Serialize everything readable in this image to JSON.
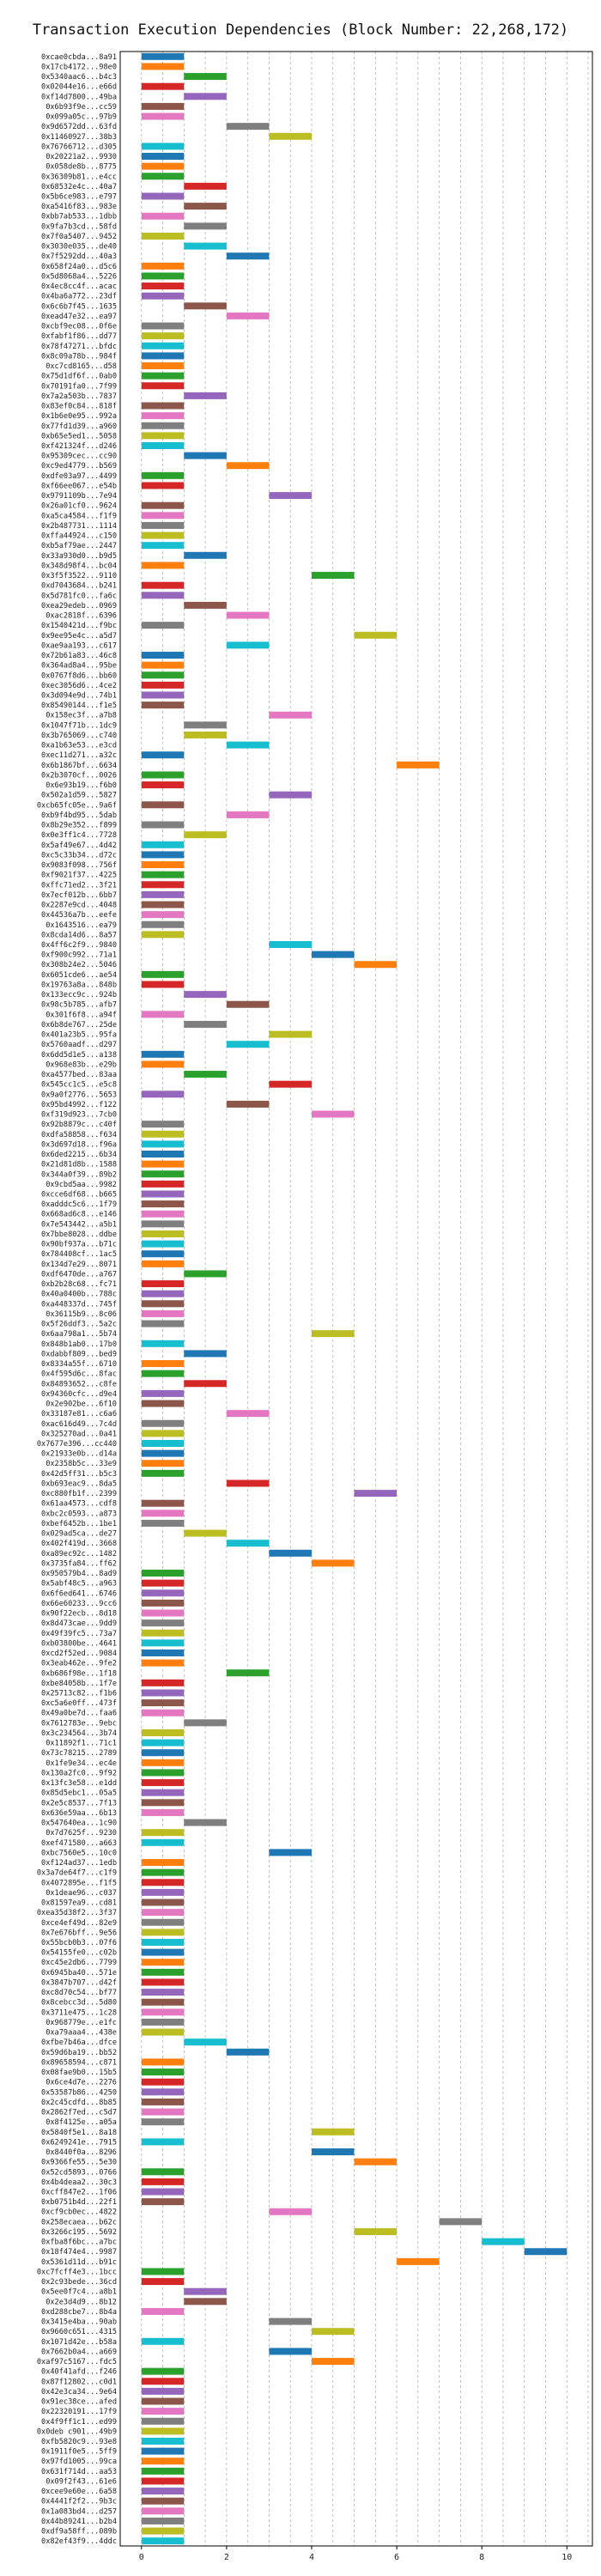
{
  "chart_data": {
    "type": "bar",
    "orientation": "horizontal-gantt",
    "title": "Transaction Execution Dependencies (Block Number: 22,268,172)",
    "xlabel": "",
    "ylabel": "",
    "xlim": [
      -0.5,
      10.6
    ],
    "xticks": [
      0,
      2,
      4,
      6,
      8,
      10
    ],
    "grid": true,
    "palette": [
      "#1f77b4",
      "#ff7f0e",
      "#2ca02c",
      "#d62728",
      "#9467bd",
      "#8c564b",
      "#e377c2",
      "#7f7f7f",
      "#bcbd22",
      "#17becf"
    ],
    "tasks": [
      [
        "0xcae0cbda...8a91",
        0,
        0
      ],
      [
        "0x17cb4172...98e0",
        0,
        1
      ],
      [
        "0x5340aac6...b4c3",
        1,
        2
      ],
      [
        "0x02044e16...e66d",
        0,
        3
      ],
      [
        "0xf14d7800...49ba",
        1,
        4
      ],
      [
        "0x6b93f9e...cc59",
        0,
        5
      ],
      [
        "0x099a05c...97b9",
        0,
        6
      ],
      [
        "0x9d6572dd...63fd",
        2,
        7
      ],
      [
        "0x11460927...38b3",
        3,
        8
      ],
      [
        "0x76766712...d305",
        0,
        9
      ],
      [
        "0x20221a2...9930",
        0,
        10
      ],
      [
        "0x058de8b...8775",
        0,
        11
      ],
      [
        "0x36309b81...e4cc",
        0,
        12
      ],
      [
        "0x68532e4c...40a7",
        1,
        13
      ],
      [
        "0x5b6ce983...e797",
        0,
        14
      ],
      [
        "0xa5416f83...983e",
        1,
        15
      ],
      [
        "0xbb7ab533...1dbb",
        0,
        16
      ],
      [
        "0x9fa7b3cd...58fd",
        1,
        17
      ],
      [
        "0x7f0a5407...9452",
        0,
        18
      ],
      [
        "0x3030e035...de40",
        1,
        19
      ],
      [
        "0x7f5292dd...40a3",
        2,
        20
      ],
      [
        "0x658f24a0...d5c6",
        0,
        21
      ],
      [
        "0x5d8068a4...5226",
        0,
        22
      ],
      [
        "0x4ec8cc4f...acac",
        0,
        23
      ],
      [
        "0x4ba6a772...23df",
        0,
        24
      ],
      [
        "0x6c6b7f45...1635",
        1,
        25
      ],
      [
        "0xead47e32...ea97",
        2,
        26
      ],
      [
        "0xcbf9ec08...0f6e",
        0,
        27
      ],
      [
        "0xfabf1f86...dd77",
        0,
        28
      ],
      [
        "0x78f47271...bfdc",
        0,
        29
      ],
      [
        "0x8c09a78b...984f",
        0,
        30
      ],
      [
        "0xc7cd8165...d58",
        0,
        31
      ],
      [
        "0x75d1df6f...0ab0",
        0,
        32
      ],
      [
        "0x70191fa0...7f99",
        0,
        33
      ],
      [
        "0x7a2a503b...7837",
        1,
        34
      ],
      [
        "0x83ef0c84...818f",
        0,
        35
      ],
      [
        "0x1b6e0e95...992a",
        0,
        36
      ],
      [
        "0x77fd1d39...a960",
        0,
        37
      ],
      [
        "0xb65e5ed1...5058",
        0,
        38
      ],
      [
        "0xf421324f...d246",
        0,
        39
      ],
      [
        "0x95309cec...cc90",
        1,
        40
      ],
      [
        "0xc9ed4779...b569",
        2,
        41
      ],
      [
        "0xdfe03a97...4499",
        0,
        42
      ],
      [
        "0xf66ee067...e54b",
        0,
        43
      ],
      [
        "0x9791109b...7e94",
        3,
        44
      ],
      [
        "0x26a01cf0...9624",
        0,
        45
      ],
      [
        "0xa5ca4584...f1f9",
        0,
        46
      ],
      [
        "0x2b487731...1114",
        0,
        47
      ],
      [
        "0xffa44924...c150",
        0,
        48
      ],
      [
        "0xb5af79ae...2447",
        0,
        49
      ],
      [
        "0x33a930d0...b9d5",
        1,
        50
      ],
      [
        "0x348d98f4...bc04",
        0,
        51
      ],
      [
        "0x3f5f3522...9110",
        4,
        52
      ],
      [
        "0xd7043684...b241",
        0,
        53
      ],
      [
        "0x5d781fc0...fa6c",
        0,
        54
      ],
      [
        "0xea29edeb...0969",
        1,
        55
      ],
      [
        "0xac2818f...6396",
        2,
        56
      ],
      [
        "0x1540421d...f9bc",
        0,
        57
      ],
      [
        "0x9ee95e4c...a5d7",
        5,
        58
      ],
      [
        "0xae9aa193...c617",
        2,
        59
      ],
      [
        "0x72b61a83...46c8",
        0,
        60
      ],
      [
        "0x364ad8a4...95be",
        0,
        61
      ],
      [
        "0x0767f8d6...bb60",
        0,
        62
      ],
      [
        "0xec3056d6...4ce2",
        0,
        63
      ],
      [
        "0x3d094e9d...74b1",
        0,
        64
      ],
      [
        "0x85490144...f1e5",
        0,
        65
      ],
      [
        "0x158ec3f...a7b8",
        3,
        66
      ],
      [
        "0x1047f71b...1dc9",
        1,
        67
      ],
      [
        "0x3b765069...c740",
        1,
        68
      ],
      [
        "0xa1b63e53...e3cd",
        2,
        69
      ],
      [
        "0xec11d271...a32c",
        0,
        70
      ],
      [
        "0x6b1867bf...6634",
        6,
        71
      ],
      [
        "0x2b3070cf...0026",
        0,
        72
      ],
      [
        "0x6e93b19...f6b0",
        0,
        73
      ],
      [
        "0x502a1d59...5827",
        3,
        74
      ],
      [
        "0xcb65fc05e...9a6f",
        0,
        75
      ],
      [
        "0xb9f4bd95...5dab",
        2,
        76
      ],
      [
        "0x8b29e352...f899",
        0,
        77
      ],
      [
        "0x0e3ff1c4...7728",
        1,
        78
      ],
      [
        "0x5af49e67...4d42",
        0,
        79
      ],
      [
        "0xc5c33b34...d72c",
        0,
        80
      ],
      [
        "0x9083f098...756f",
        0,
        81
      ],
      [
        "0xf9021f37...4225",
        0,
        82
      ],
      [
        "0xffc71ed2...3f21",
        0,
        83
      ],
      [
        "0x7ecf012b...6bb7",
        0,
        84
      ],
      [
        "0x2287e9cd...4048",
        0,
        85
      ],
      [
        "0x44536a7b...eefe",
        0,
        86
      ],
      [
        "0x1643516...ea79",
        0,
        87
      ],
      [
        "0x8cda14d6...8a57",
        0,
        88
      ],
      [
        "0x4ff6c2f9...9840",
        3,
        89
      ],
      [
        "0xf900c992...71a1",
        4,
        90
      ],
      [
        "0x308b24e2...5046",
        5,
        91
      ],
      [
        "0x6051cde6...ae54",
        0,
        92
      ],
      [
        "0x19763a8a...848b",
        0,
        93
      ],
      [
        "0x133ecc9c...924b",
        1,
        94
      ],
      [
        "0x98c5b785...afb7",
        2,
        95
      ],
      [
        "0x301f6f8...a94f",
        0,
        96
      ],
      [
        "0x6b8de767...25de",
        1,
        97
      ],
      [
        "0x401a23b5...95fa",
        3,
        98
      ],
      [
        "0x5760aadf...d297",
        2,
        99
      ],
      [
        "0x6dd5d1e5...a138",
        0,
        100
      ],
      [
        "0x968e83b...e29b",
        0,
        101
      ],
      [
        "0xa4577bed...83aa",
        1,
        102
      ],
      [
        "0x545cc1c5...e5c8",
        3,
        103
      ],
      [
        "0x9a0f2776...5653",
        0,
        104
      ],
      [
        "0x95bd4992...f122",
        2,
        105
      ],
      [
        "0xf319d923...7cb0",
        4,
        106
      ],
      [
        "0x92b8879c...c40f",
        0,
        107
      ],
      [
        "0xdfa58858...f634",
        0,
        108
      ],
      [
        "0x3d697d18...f96a",
        0,
        109
      ],
      [
        "0x6ded2215...6b34",
        0,
        110
      ],
      [
        "0x21d81d8b...1588",
        0,
        111
      ],
      [
        "0x344a0f39...89b2",
        0,
        112
      ],
      [
        "0x9cbd5aa...9982",
        0,
        113
      ],
      [
        "0xcce6df68...b665",
        0,
        114
      ],
      [
        "0xadddc5c6...1f79",
        0,
        115
      ],
      [
        "0x668ad6c8...e146",
        0,
        116
      ],
      [
        "0x7e543442...a5b1",
        0,
        117
      ],
      [
        "0x7bbe8028...ddbe",
        0,
        118
      ],
      [
        "0x90bf937a...b71c",
        0,
        119
      ],
      [
        "0x784408cf...1ac5",
        0,
        120
      ],
      [
        "0x134d7e29...8071",
        0,
        121
      ],
      [
        "0xdf6470de...a767",
        1,
        122
      ],
      [
        "0xb2b28c68...fc71",
        0,
        123
      ],
      [
        "0x40a0400b...788c",
        0,
        124
      ],
      [
        "0xa448337d...745f",
        0,
        125
      ],
      [
        "0x36115b9...8c06",
        0,
        126
      ],
      [
        "0x5f26ddf3...5a2c",
        0,
        127
      ],
      [
        "0x6aa798a1...5b74",
        4,
        128
      ],
      [
        "0x848b1ab0...17b0",
        0,
        129
      ],
      [
        "0xdabbf809...bed9",
        1,
        130
      ],
      [
        "0x8334a55f...6710",
        0,
        131
      ],
      [
        "0x4f595d6c...8fac",
        0,
        132
      ],
      [
        "0x84893652...c8fe",
        1,
        133
      ],
      [
        "0x94360cfc...d9e4",
        0,
        134
      ],
      [
        "0x2e902be...6f10",
        0,
        135
      ],
      [
        "0x33187e81...c6a6",
        2,
        136
      ],
      [
        "0xac616d49...7c4d",
        0,
        137
      ],
      [
        "0x325270ad...0a41",
        0,
        138
      ],
      [
        "0x7677e396...cc440",
        0,
        139
      ],
      [
        "0x21933e0b...d14a",
        0,
        140
      ],
      [
        "0x2358b5c...33e9",
        0,
        141
      ],
      [
        "0x42d5ff31...b5c3",
        0,
        142
      ],
      [
        "0xb693eac9...8da5",
        2,
        143
      ],
      [
        "0xc880fb1f...2399",
        5,
        144
      ],
      [
        "0x61aa4573...cdf8",
        0,
        145
      ],
      [
        "0xbc2c0593...a873",
        0,
        146
      ],
      [
        "0xbef6452b...1be1",
        0,
        147
      ],
      [
        "0x029ad5ca...de27",
        1,
        148
      ],
      [
        "0x402f419d...3668",
        2,
        149
      ],
      [
        "0xa89ec92c...1482",
        3,
        150
      ],
      [
        "0x3735fa84...ff62",
        4,
        151
      ],
      [
        "0x950579b4...8ad9",
        0,
        152
      ],
      [
        "0x5abf48c5...a963",
        0,
        153
      ],
      [
        "0x6f6ed641...6746",
        0,
        154
      ],
      [
        "0x66e60233...9cc6",
        0,
        155
      ],
      [
        "0x90f22ecb...8d18",
        0,
        156
      ],
      [
        "0x8d473cae...9dd9",
        0,
        157
      ],
      [
        "0x49f39fc5...73a7",
        0,
        158
      ],
      [
        "0xb03800be...4641",
        0,
        159
      ],
      [
        "0xcd2f52ed...9084",
        0,
        160
      ],
      [
        "0x3eab462e...9fe2",
        0,
        161
      ],
      [
        "0xb686f98e...1f18",
        2,
        162
      ],
      [
        "0xbe84058b...1f7e",
        0,
        163
      ],
      [
        "0x25713c82...f1b6",
        0,
        164
      ],
      [
        "0xc5a6e0ff...473f",
        0,
        165
      ],
      [
        "0x49a0be7d...faa6",
        0,
        166
      ],
      [
        "0x7612783e...9ebc",
        1,
        167
      ],
      [
        "0x3c234564...3b74",
        0,
        168
      ],
      [
        "0x11892f1...71c1",
        0,
        169
      ],
      [
        "0x73c78215...2789",
        0,
        170
      ],
      [
        "0x1fe9e34...ec4e",
        0,
        171
      ],
      [
        "0x130a2fc0...9f92",
        0,
        172
      ],
      [
        "0x13fc3e58...e1dd",
        0,
        173
      ],
      [
        "0x85d5ebc1...05a5",
        0,
        174
      ],
      [
        "0x2e5c8537...7f13",
        0,
        175
      ],
      [
        "0x636e59aa...6b13",
        0,
        176
      ],
      [
        "0x547640ea...1c90",
        1,
        177
      ],
      [
        "0x7d7625f...9230",
        0,
        178
      ],
      [
        "0xef471580...a663",
        0,
        179
      ],
      [
        "0xbc7560e5...10c0",
        3,
        180
      ],
      [
        "0xf124ad37...1edb",
        0,
        181
      ],
      [
        "0x3a7de64f7...c1f9",
        0,
        182
      ],
      [
        "0x4072895e...f1f5",
        0,
        183
      ],
      [
        "0x1deae96...c037",
        0,
        184
      ],
      [
        "0x81597ea9...cd81",
        0,
        185
      ],
      [
        "0xea35d38f2...3f37",
        0,
        186
      ],
      [
        "0xce4ef49d...82e9",
        0,
        187
      ],
      [
        "0x7e676bff...9e56",
        0,
        188
      ],
      [
        "0x55bcb0b3...07f6",
        0,
        189
      ],
      [
        "0x54155fe0...c02b",
        0,
        190
      ],
      [
        "0xc45e2db6...7799",
        0,
        191
      ],
      [
        "0x6945ba40...571e",
        0,
        192
      ],
      [
        "0x3847b707...d42f",
        0,
        193
      ],
      [
        "0xc8d70c54...bf77",
        0,
        194
      ],
      [
        "0x8cebcc3d...5d80",
        0,
        195
      ],
      [
        "0x3711e475...1c28",
        0,
        196
      ],
      [
        "0x968779e...e1fc",
        0,
        197
      ],
      [
        "0xa79aaa4...438e",
        0,
        198
      ],
      [
        "0xfbe7b46a...dfce",
        1,
        199
      ],
      [
        "0x59d6ba19...bb52",
        2,
        200
      ],
      [
        "0x89658594...c871",
        0,
        201
      ],
      [
        "0x08fae9b0...15b5",
        0,
        202
      ],
      [
        "0x6ce4d7e...2276",
        0,
        203
      ],
      [
        "0x53587b86...4250",
        0,
        204
      ],
      [
        "0x2c45cdfd...8b85",
        0,
        205
      ],
      [
        "0x2862f7ed...c5d7",
        0,
        206
      ],
      [
        "0x8f4125e...a05a",
        0,
        207
      ],
      [
        "0x5840f5e1...8a18",
        4,
        208
      ],
      [
        "0x6249241e...7915",
        0,
        209
      ],
      [
        "0x8440f0a...8296",
        4,
        210
      ],
      [
        "0x9366fe55...5e30",
        5,
        211
      ],
      [
        "0x52cd5893...0766",
        0,
        212
      ],
      [
        "0x4b4deaa2...30c3",
        0,
        213
      ],
      [
        "0xcff847e2...1f06",
        0,
        214
      ],
      [
        "0xb0751b4d...22f1",
        0,
        215
      ],
      [
        "0xcf9cb0ec...4822",
        3,
        216
      ],
      [
        "0x258ecaea...b62c",
        7,
        217
      ],
      [
        "0x3266c195...5692",
        5,
        218
      ],
      [
        "0xfba8f6bc...a7bc",
        8,
        219
      ],
      [
        "0x18f474e4...9987",
        9,
        220
      ],
      [
        "0x5361d11d...b91c",
        6,
        221
      ],
      [
        "0xc7fcff4e3...1bcc",
        0,
        222
      ],
      [
        "0x2c93bede...36cd",
        0,
        223
      ],
      [
        "0x5ee0f7c4...a8b1",
        1,
        224
      ],
      [
        "0x2e3d4d9...8b12",
        1,
        225
      ],
      [
        "0xd288cbe7...8b4a",
        0,
        226
      ],
      [
        "0x3415e4ba...90ab",
        3,
        227
      ],
      [
        "0x9660c651...4315",
        4,
        228
      ],
      [
        "0x1071d42e...b58a",
        0,
        229
      ],
      [
        "0x7662b0a4...a669",
        3,
        230
      ],
      [
        "0xaf97c5167...fdc5",
        4,
        231
      ],
      [
        "0x40f41afd...f246",
        0,
        232
      ],
      [
        "0x87f12802...c0d1",
        0,
        233
      ],
      [
        "0x42e3ca34...9e64",
        0,
        234
      ],
      [
        "0x91ec38ce...afed",
        0,
        235
      ],
      [
        "0x22320191...17f9",
        0,
        236
      ],
      [
        "0x4f9ff1c1...ed99",
        0,
        237
      ],
      [
        "0x0deb c901...49b9",
        0,
        238
      ],
      [
        "0xfb5820c9...93e8",
        0,
        239
      ],
      [
        "0x1911f0e5...5ff9",
        0,
        240
      ],
      [
        "0x97fd1005...99ca",
        0,
        241
      ],
      [
        "0x631f714d...aa53",
        0,
        242
      ],
      [
        "0x09f2f43...61e6",
        0,
        243
      ],
      [
        "0xcee9e60e...6a58",
        0,
        244
      ],
      [
        "0x4441f2f2...9b3c",
        0,
        245
      ],
      [
        "0x1a083bd4...d257",
        0,
        246
      ],
      [
        "0x44b89241...b2b4",
        0,
        247
      ],
      [
        "0xdf9a58ff...089b",
        0,
        248
      ],
      [
        "0x82ef43f9...4ddc",
        0,
        249
      ]
    ]
  }
}
